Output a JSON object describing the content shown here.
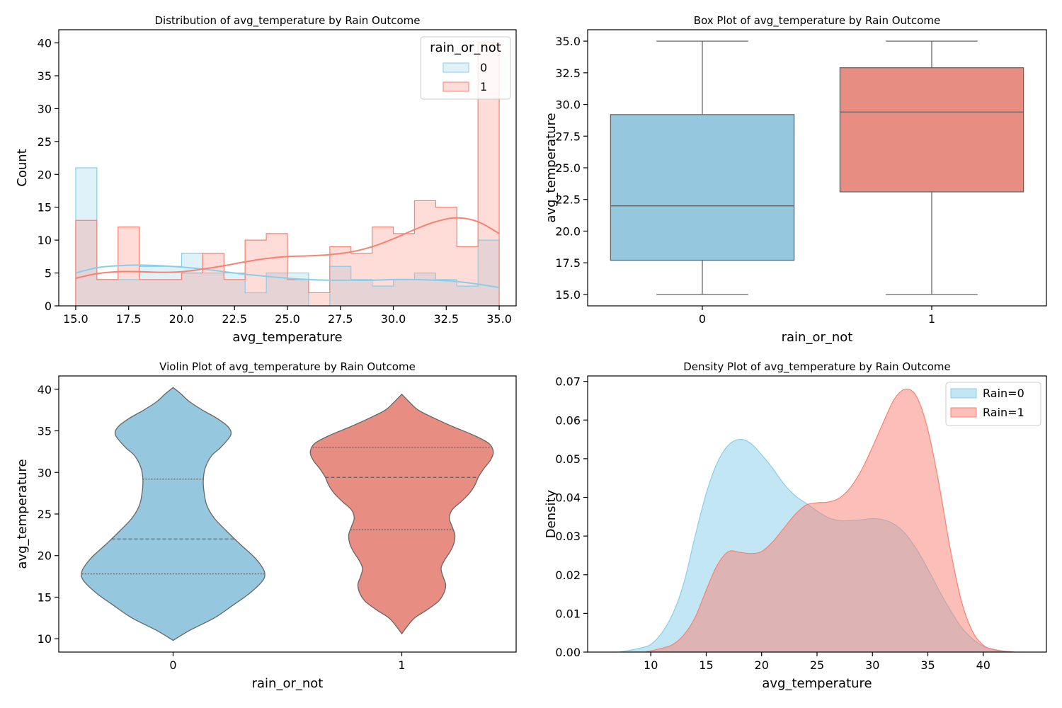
{
  "colors": {
    "rain0": "#87CEEB",
    "rain1": "#FA8072",
    "box_line": "#666666"
  },
  "chart_data": [
    {
      "type": "bar",
      "subtype": "step-histogram-with-kde",
      "title": "Distribution of avg_temperature by Rain Outcome",
      "xlabel": "avg_temperature",
      "ylabel": "Count",
      "xlim": [
        14.2,
        35.8
      ],
      "ylim": [
        0,
        42
      ],
      "xticks": [
        15.0,
        17.5,
        20.0,
        22.5,
        25.0,
        27.5,
        30.0,
        32.5,
        35.0
      ],
      "xtick_labels": [
        "15.0",
        "17.5",
        "20.0",
        "22.5",
        "25.0",
        "27.5",
        "30.0",
        "32.5",
        "35.0"
      ],
      "yticks": [
        0,
        5,
        10,
        15,
        20,
        25,
        30,
        35,
        40
      ],
      "bin_edges": [
        15,
        16,
        17,
        18,
        19,
        20,
        21,
        22,
        23,
        24,
        25,
        26,
        27,
        28,
        29,
        30,
        31,
        32,
        33,
        34,
        35
      ],
      "legend": {
        "title": "rain_or_not",
        "position": "upper right"
      },
      "series": [
        {
          "name": "0",
          "color": "#87CEEB",
          "counts": [
            21,
            4,
            4,
            6,
            6,
            8,
            5,
            5,
            2,
            5,
            5,
            0,
            6,
            4,
            3,
            4,
            5,
            4,
            3,
            10
          ],
          "kde": {
            "x": [
              15,
              16,
              17,
              18,
              19,
              20,
              21,
              22,
              23,
              24,
              25,
              26,
              27,
              28,
              29,
              30,
              31,
              32,
              33,
              34,
              35
            ],
            "y": [
              5.0,
              5.8,
              6.1,
              6.2,
              6.1,
              5.9,
              5.6,
              5.2,
              4.8,
              4.5,
              4.2,
              4.0,
              3.9,
              3.9,
              3.9,
              4.0,
              4.0,
              3.9,
              3.7,
              3.3,
              2.8
            ]
          }
        },
        {
          "name": "1",
          "color": "#FA8072",
          "counts": [
            13,
            4,
            12,
            4,
            4,
            5,
            8,
            4,
            10,
            11,
            4,
            2,
            9,
            8,
            12,
            11,
            16,
            15,
            9,
            40
          ],
          "kde": {
            "x": [
              15,
              16,
              17,
              18,
              19,
              20,
              21,
              22,
              23,
              24,
              25,
              26,
              27,
              28,
              29,
              30,
              31,
              32,
              33,
              34,
              35
            ],
            "y": [
              4.2,
              4.9,
              5.2,
              5.2,
              5.1,
              5.2,
              5.6,
              6.1,
              6.7,
              7.2,
              7.5,
              7.6,
              7.8,
              8.2,
              9.0,
              10.2,
              11.6,
              12.8,
              13.4,
              12.8,
              11.0
            ]
          }
        }
      ]
    },
    {
      "type": "bar",
      "subtype": "box",
      "title": "Box Plot of avg_temperature by Rain Outcome",
      "xlabel": "rain_or_not",
      "ylabel": "avg_temperature",
      "categories": [
        "0",
        "1"
      ],
      "ylim": [
        14.1,
        35.9
      ],
      "yticks": [
        15.0,
        17.5,
        20.0,
        22.5,
        25.0,
        27.5,
        30.0,
        32.5,
        35.0
      ],
      "ytick_labels": [
        "15.0",
        "17.5",
        "20.0",
        "22.5",
        "25.0",
        "27.5",
        "30.0",
        "32.5",
        "35.0"
      ],
      "series": [
        {
          "name": "0",
          "color": "#87CEEB",
          "min": 15.0,
          "q1": 17.7,
          "median": 22.0,
          "q3": 29.2,
          "max": 35.0
        },
        {
          "name": "1",
          "color": "#FA8072",
          "min": 15.0,
          "q1": 23.1,
          "median": 29.4,
          "q3": 32.9,
          "max": 35.0
        }
      ]
    },
    {
      "type": "area",
      "subtype": "violin",
      "title": "Violin Plot of avg_temperature by Rain Outcome",
      "xlabel": "rain_or_not",
      "ylabel": "avg_temperature",
      "categories": [
        "0",
        "1"
      ],
      "ylim": [
        8.4,
        41.6
      ],
      "yticks": [
        10,
        15,
        20,
        25,
        30,
        35,
        40
      ],
      "series": [
        {
          "name": "0",
          "color": "#87CEEB",
          "quartiles": [
            17.8,
            22.0,
            29.2
          ],
          "profile": [
            [
              9.8,
              0.0
            ],
            [
              11,
              0.18
            ],
            [
              12.5,
              0.45
            ],
            [
              14,
              0.65
            ],
            [
              15.5,
              0.84
            ],
            [
              17,
              0.98
            ],
            [
              18,
              1.0
            ],
            [
              19,
              0.95
            ],
            [
              20,
              0.87
            ],
            [
              21.5,
              0.72
            ],
            [
              23,
              0.58
            ],
            [
              24.5,
              0.45
            ],
            [
              26,
              0.37
            ],
            [
              27.5,
              0.34
            ],
            [
              29,
              0.33
            ],
            [
              30.5,
              0.35
            ],
            [
              32,
              0.42
            ],
            [
              33,
              0.52
            ],
            [
              34.5,
              0.63
            ],
            [
              35.5,
              0.6
            ],
            [
              36.5,
              0.48
            ],
            [
              37.5,
              0.32
            ],
            [
              38.5,
              0.18
            ],
            [
              39.5,
              0.08
            ],
            [
              40.2,
              0.0
            ]
          ]
        },
        {
          "name": "1",
          "color": "#FA8072",
          "quartiles": [
            23.1,
            29.4,
            33.0
          ],
          "profile": [
            [
              10.6,
              0.0
            ],
            [
              11.5,
              0.06
            ],
            [
              12.5,
              0.14
            ],
            [
              13.5,
              0.28
            ],
            [
              14.5,
              0.4
            ],
            [
              15.5,
              0.46
            ],
            [
              16.5,
              0.48
            ],
            [
              17.5,
              0.45
            ],
            [
              18.5,
              0.43
            ],
            [
              19.5,
              0.47
            ],
            [
              20.5,
              0.53
            ],
            [
              21.5,
              0.57
            ],
            [
              22.5,
              0.58
            ],
            [
              23.5,
              0.55
            ],
            [
              24.5,
              0.52
            ],
            [
              25.5,
              0.55
            ],
            [
              26.5,
              0.65
            ],
            [
              27.5,
              0.74
            ],
            [
              28.5,
              0.8
            ],
            [
              29.5,
              0.84
            ],
            [
              30.5,
              0.9
            ],
            [
              31.5,
              0.97
            ],
            [
              32.5,
              1.0
            ],
            [
              33.5,
              0.95
            ],
            [
              34.5,
              0.78
            ],
            [
              35.5,
              0.56
            ],
            [
              36.5,
              0.36
            ],
            [
              37.5,
              0.18
            ],
            [
              38.5,
              0.08
            ],
            [
              39.4,
              0.0
            ]
          ]
        }
      ]
    },
    {
      "type": "area",
      "subtype": "kde",
      "title": "Density Plot of avg_temperature by Rain Outcome",
      "xlabel": "avg_temperature",
      "ylabel": "Density",
      "xlim": [
        4.3,
        45.7
      ],
      "ylim": [
        0,
        0.0714
      ],
      "xticks": [
        10,
        15,
        20,
        25,
        30,
        35,
        40
      ],
      "yticks": [
        0.0,
        0.01,
        0.02,
        0.03,
        0.04,
        0.05,
        0.06,
        0.07
      ],
      "ytick_labels": [
        "0.00",
        "0.01",
        "0.02",
        "0.03",
        "0.04",
        "0.05",
        "0.06",
        "0.07"
      ],
      "legend": {
        "position": "upper right"
      },
      "series": [
        {
          "name": "Rain=0",
          "color": "#87CEEB",
          "x": [
            7.2,
            9,
            10,
            11,
            12,
            13,
            14,
            15,
            16,
            17,
            18,
            19,
            20,
            21,
            22,
            23,
            24,
            25,
            26,
            27,
            28,
            29,
            30,
            31,
            32,
            33,
            34,
            35,
            36,
            37,
            38,
            39,
            40,
            41,
            42,
            42.8
          ],
          "y": [
            0.0,
            0.001,
            0.002,
            0.005,
            0.01,
            0.018,
            0.03,
            0.041,
            0.049,
            0.0535,
            0.055,
            0.054,
            0.051,
            0.0475,
            0.0435,
            0.0405,
            0.0385,
            0.0365,
            0.0348,
            0.034,
            0.034,
            0.0342,
            0.0345,
            0.0342,
            0.033,
            0.0305,
            0.0265,
            0.0215,
            0.016,
            0.011,
            0.0065,
            0.0035,
            0.0015,
            0.0007,
            0.0002,
            0.0
          ]
        },
        {
          "name": "Rain=1",
          "color": "#FA8072",
          "x": [
            9.5,
            11,
            12,
            13,
            14,
            15,
            16,
            17,
            18,
            19,
            20,
            21,
            22,
            23,
            24,
            25,
            26,
            27,
            28,
            29,
            30,
            31,
            32,
            33,
            34,
            35,
            36,
            37,
            38,
            39,
            40,
            41,
            42,
            42.8
          ],
          "y": [
            0.0,
            0.001,
            0.002,
            0.0045,
            0.009,
            0.016,
            0.0225,
            0.026,
            0.0258,
            0.0255,
            0.026,
            0.0285,
            0.032,
            0.0355,
            0.038,
            0.0386,
            0.0388,
            0.0398,
            0.0425,
            0.047,
            0.053,
            0.0595,
            0.0655,
            0.068,
            0.066,
            0.0575,
            0.0435,
            0.027,
            0.0135,
            0.0055,
            0.0018,
            0.0006,
            0.0002,
            0.0
          ]
        }
      ]
    }
  ]
}
